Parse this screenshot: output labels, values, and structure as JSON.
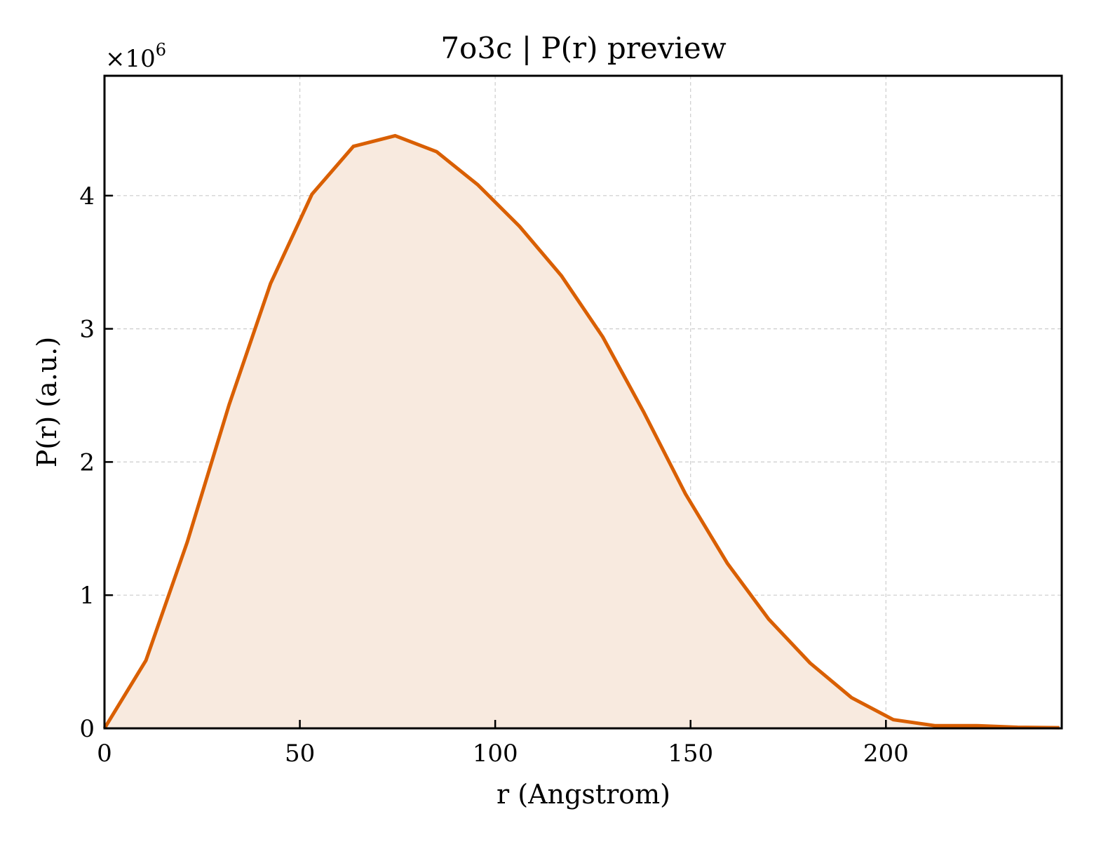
{
  "chart_data": {
    "type": "area",
    "title": "7o3c | P(r) preview",
    "xlabel": "r (Angstrom)",
    "ylabel": "P(r) (a.u.)",
    "y_multiplier_label": "×10",
    "y_multiplier_exponent": "6",
    "xlim": [
      0,
      245
    ],
    "ylim": [
      0,
      4.9
    ],
    "x_ticks": [
      0,
      50,
      100,
      150,
      200
    ],
    "x_tick_labels": [
      "0",
      "50",
      "100",
      "150",
      "200"
    ],
    "y_ticks": [
      0,
      1,
      2,
      3,
      4
    ],
    "y_tick_labels": [
      "0",
      "1",
      "2",
      "3",
      "4"
    ],
    "grid": true,
    "colors": {
      "line": "#d95f02",
      "fill": "#f8eadf"
    },
    "series": [
      {
        "x": [
          0,
          10.6,
          21.2,
          31.9,
          42.5,
          53.1,
          63.7,
          74.4,
          85.0,
          95.6,
          106.2,
          116.9,
          127.5,
          138.1,
          148.7,
          159.4,
          170.0,
          180.6,
          191.2,
          201.9,
          212.5,
          223.1,
          233.7,
          244.4
        ],
        "values": [
          0,
          0.51,
          1.4,
          2.43,
          3.34,
          4.01,
          4.37,
          4.45,
          4.33,
          4.08,
          3.77,
          3.4,
          2.94,
          2.37,
          1.76,
          1.24,
          0.82,
          0.49,
          0.23,
          0.065,
          0.02,
          0.02,
          0.008,
          0.005
        ]
      }
    ]
  }
}
